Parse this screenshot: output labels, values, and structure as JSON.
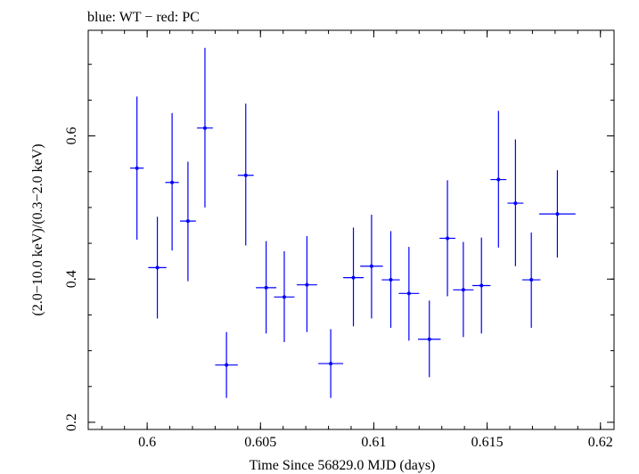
{
  "chart_data": {
    "type": "scatter",
    "title": "blue: WT − red: PC",
    "xlabel": "Time Since 56829.0 MJD (days)",
    "ylabel": "(2.0−10.0 keV)/(0.3−2.0 keV)",
    "xlim": [
      0.5974,
      0.6206
    ],
    "ylim": [
      0.19,
      0.7475
    ],
    "x_ticks": [
      0.6,
      0.605,
      0.61,
      0.615,
      0.62
    ],
    "x_tick_labels": [
      "0.6",
      "0.605",
      "0.61",
      "0.615",
      "0.62"
    ],
    "y_ticks": [
      0.2,
      0.4,
      0.6
    ],
    "y_tick_labels": [
      "0.2",
      "0.4",
      "0.6"
    ],
    "grid": false,
    "colors": {
      "WT": "#0000ff",
      "PC": "#ff0000"
    },
    "series": [
      {
        "name": "WT",
        "color": "#0000ff",
        "points": [
          {
            "x": 0.59955,
            "xerr": 0.0003,
            "y": 0.555,
            "ylo": 0.455,
            "yhi": 0.655
          },
          {
            "x": 0.60045,
            "xerr": 0.0004,
            "y": 0.416,
            "ylo": 0.345,
            "yhi": 0.487
          },
          {
            "x": 0.6011,
            "xerr": 0.0003,
            "y": 0.535,
            "ylo": 0.44,
            "yhi": 0.632
          },
          {
            "x": 0.6018,
            "xerr": 0.00035,
            "y": 0.481,
            "ylo": 0.397,
            "yhi": 0.564
          },
          {
            "x": 0.60255,
            "xerr": 0.00035,
            "y": 0.611,
            "ylo": 0.5,
            "yhi": 0.723
          },
          {
            "x": 0.6035,
            "xerr": 0.0005,
            "y": 0.28,
            "ylo": 0.234,
            "yhi": 0.326
          },
          {
            "x": 0.60435,
            "xerr": 0.00035,
            "y": 0.545,
            "ylo": 0.447,
            "yhi": 0.645
          },
          {
            "x": 0.60525,
            "xerr": 0.00045,
            "y": 0.388,
            "ylo": 0.324,
            "yhi": 0.453
          },
          {
            "x": 0.60605,
            "xerr": 0.00045,
            "y": 0.375,
            "ylo": 0.312,
            "yhi": 0.439
          },
          {
            "x": 0.60705,
            "xerr": 0.00045,
            "y": 0.392,
            "ylo": 0.326,
            "yhi": 0.46
          },
          {
            "x": 0.6081,
            "xerr": 0.00055,
            "y": 0.282,
            "ylo": 0.234,
            "yhi": 0.33
          },
          {
            "x": 0.6091,
            "xerr": 0.00045,
            "y": 0.402,
            "ylo": 0.334,
            "yhi": 0.472
          },
          {
            "x": 0.6099,
            "xerr": 0.0005,
            "y": 0.418,
            "ylo": 0.345,
            "yhi": 0.49
          },
          {
            "x": 0.61075,
            "xerr": 0.0004,
            "y": 0.399,
            "ylo": 0.332,
            "yhi": 0.467
          },
          {
            "x": 0.61155,
            "xerr": 0.00045,
            "y": 0.38,
            "ylo": 0.314,
            "yhi": 0.445
          },
          {
            "x": 0.61245,
            "xerr": 0.0005,
            "y": 0.316,
            "ylo": 0.263,
            "yhi": 0.37
          },
          {
            "x": 0.61325,
            "xerr": 0.00035,
            "y": 0.457,
            "ylo": 0.376,
            "yhi": 0.538
          },
          {
            "x": 0.61395,
            "xerr": 0.00045,
            "y": 0.385,
            "ylo": 0.319,
            "yhi": 0.452
          },
          {
            "x": 0.61475,
            "xerr": 0.0004,
            "y": 0.391,
            "ylo": 0.324,
            "yhi": 0.458
          },
          {
            "x": 0.6155,
            "xerr": 0.00035,
            "y": 0.539,
            "ylo": 0.444,
            "yhi": 0.635
          },
          {
            "x": 0.61625,
            "xerr": 0.00035,
            "y": 0.506,
            "ylo": 0.418,
            "yhi": 0.595
          },
          {
            "x": 0.61695,
            "xerr": 0.0004,
            "y": 0.399,
            "ylo": 0.332,
            "yhi": 0.465
          },
          {
            "x": 0.6181,
            "xerr": 0.0008,
            "y": 0.491,
            "ylo": 0.43,
            "yhi": 0.552
          }
        ]
      }
    ]
  }
}
